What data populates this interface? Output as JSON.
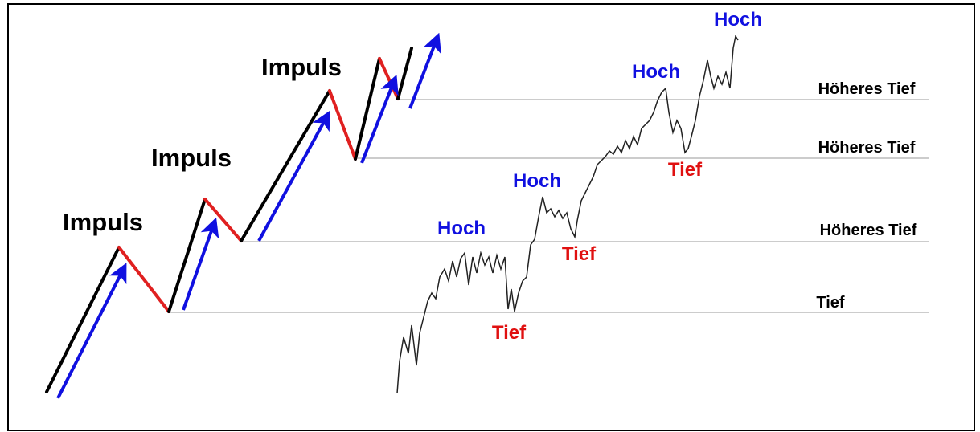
{
  "impulses": [
    "Impuls",
    "Impuls",
    "Impuls"
  ],
  "highs": [
    "Hoch",
    "Hoch",
    "Hoch",
    "Hoch"
  ],
  "lows": [
    "Tief",
    "Tief",
    "Tief"
  ],
  "levels": [
    "Höheres Tief",
    "Höheres Tief",
    "Höheres Tief",
    "Tief"
  ]
}
